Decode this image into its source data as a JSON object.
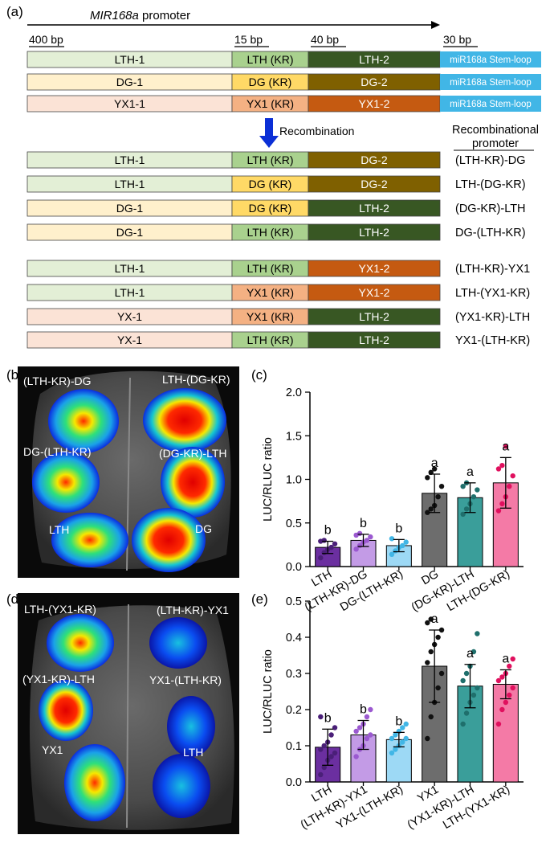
{
  "panels": {
    "a": "(a)",
    "b": "(b)",
    "c": "(c)",
    "d": "(d)",
    "e": "(e)"
  },
  "promoter_label": "MIR168a promoter",
  "promoter_label_italic": "MIR168a",
  "promoter_label_rest": " promoter",
  "scale_labels": [
    "400 bp",
    "15 bp",
    "40 bp",
    "30 bp"
  ],
  "stem_loop_label": "miR168a Stem-loop",
  "colors": {
    "LTH-1": "#e3efd6",
    "LTH(KR)": "#a9d18e",
    "LTH-2": "#385723",
    "DG-1": "#fff0cc",
    "DG(KR)": "#ffd966",
    "DG-2": "#7f6000",
    "YX1-1": "#fbe3d6",
    "YX1(KR)": "#f4b183",
    "YX1-2": "#c55a11",
    "stem": "#41b6e6",
    "arrow": "#0b2fd6"
  },
  "original_rows": [
    {
      "seg1": "LTH-1",
      "seg2": "LTH (KR)",
      "seg3": "LTH-2",
      "c1": "#e3efd6",
      "c2": "#a9d18e",
      "c3": "#385723",
      "t3": "#fff"
    },
    {
      "seg1": "DG-1",
      "seg2": "DG (KR)",
      "seg3": "DG-2",
      "c1": "#fff0cc",
      "c2": "#ffd966",
      "c3": "#7f6000",
      "t3": "#fff"
    },
    {
      "seg1": "YX1-1",
      "seg2": "YX1 (KR)",
      "seg3": "YX1-2",
      "c1": "#fbe3d6",
      "c2": "#f4b183",
      "c3": "#c55a11",
      "t3": "#fff"
    }
  ],
  "recombination_label": "Recombination",
  "recombinational_header": [
    "Recombinational",
    "promoter"
  ],
  "recomb_rows": [
    {
      "seg1": "LTH-1",
      "seg2": "LTH (KR)",
      "seg3": "DG-2",
      "c1": "#e3efd6",
      "c2": "#a9d18e",
      "c3": "#7f6000",
      "name": "(LTH-KR)-DG"
    },
    {
      "seg1": "LTH-1",
      "seg2": "DG (KR)",
      "seg3": "DG-2",
      "c1": "#e3efd6",
      "c2": "#ffd966",
      "c3": "#7f6000",
      "name": "LTH-(DG-KR)"
    },
    {
      "seg1": "DG-1",
      "seg2": "DG (KR)",
      "seg3": "LTH-2",
      "c1": "#fff0cc",
      "c2": "#ffd966",
      "c3": "#385723",
      "name": "(DG-KR)-LTH"
    },
    {
      "seg1": "DG-1",
      "seg2": "LTH (KR)",
      "seg3": "LTH-2",
      "c1": "#fff0cc",
      "c2": "#a9d18e",
      "c3": "#385723",
      "name": "DG-(LTH-KR)"
    },
    {
      "seg1": "LTH-1",
      "seg2": "LTH (KR)",
      "seg3": "YX1-2",
      "c1": "#e3efd6",
      "c2": "#a9d18e",
      "c3": "#c55a11",
      "name": "(LTH-KR)-YX1"
    },
    {
      "seg1": "LTH-1",
      "seg2": "YX1 (KR)",
      "seg3": "YX1-2",
      "c1": "#e3efd6",
      "c2": "#f4b183",
      "c3": "#c55a11",
      "name": "LTH-(YX1-KR)"
    },
    {
      "seg1": "YX-1",
      "seg2": "YX1 (KR)",
      "seg3": "LTH-2",
      "c1": "#fbe3d6",
      "c2": "#f4b183",
      "c3": "#385723",
      "name": "(YX1-KR)-LTH"
    },
    {
      "seg1": "YX-1",
      "seg2": "LTH (KR)",
      "seg3": "LTH-2",
      "c1": "#fbe3d6",
      "c2": "#a9d18e",
      "c3": "#385723",
      "name": "YX1-(LTH-KR)"
    }
  ],
  "leaf_b_labels": [
    "(LTH-KR)-DG",
    "LTH-(DG-KR)",
    "DG-(LTH-KR)",
    "(DG-KR)-LTH",
    "LTH",
    "DG"
  ],
  "leaf_d_labels": [
    "LTH-(YX1-KR)",
    "(LTH-KR)-YX1",
    "(YX1-KR)-LTH",
    "YX1-(LTH-KR)",
    "YX1",
    "LTH"
  ],
  "chart_data": [
    {
      "type": "bar",
      "panel": "c",
      "ylabel": "LUC/RLUC ratio",
      "ylim": [
        0,
        2.0
      ],
      "yticks": [
        "0.0",
        "0.5",
        "1.0",
        "1.5",
        "2.0"
      ],
      "categories": [
        "LTH",
        "(LTH-KR)-DG",
        "DG-(LTH-KR)",
        "DG",
        "(DG-KR)-LTH",
        "LTH-(DG-KR)"
      ],
      "values": [
        0.22,
        0.3,
        0.24,
        0.84,
        0.79,
        0.96
      ],
      "errors": [
        0.07,
        0.07,
        0.07,
        0.22,
        0.17,
        0.29
      ],
      "significance": [
        "b",
        "b",
        "b",
        "a",
        "a",
        "a"
      ],
      "bar_colors": [
        "#6b2fa0",
        "#c39be6",
        "#9dd9f5",
        "#6d6d6d",
        "#3a9e9a",
        "#f47aa6"
      ],
      "point_colors": [
        "#4a1f78",
        "#9b59d0",
        "#41b6e6",
        "#111111",
        "#1f6f6c",
        "#e0105e"
      ],
      "points": [
        [
          0.1,
          0.16,
          0.2,
          0.22,
          0.26,
          0.29,
          0.3
        ],
        [
          0.2,
          0.24,
          0.28,
          0.3,
          0.34,
          0.36,
          0.38
        ],
        [
          0.14,
          0.18,
          0.22,
          0.24,
          0.28,
          0.32
        ],
        [
          0.62,
          0.66,
          0.7,
          0.8,
          0.92,
          1.02,
          1.08,
          1.12
        ],
        [
          0.6,
          0.66,
          0.72,
          0.8,
          0.88,
          0.92,
          0.96
        ],
        [
          0.64,
          0.72,
          0.8,
          0.92,
          1.04,
          1.12,
          1.16,
          1.38
        ]
      ]
    },
    {
      "type": "bar",
      "panel": "e",
      "ylabel": "LUC/RLUC ratio",
      "ylim": [
        0,
        0.5
      ],
      "yticks": [
        "0.0",
        "0.1",
        "0.2",
        "0.3",
        "0.4",
        "0.5"
      ],
      "categories": [
        "LTH",
        "(LTH-KR)-YX1",
        "YX1-(LTH-KR)",
        "YX1",
        "(YX1-KR)-LTH",
        "LTH-(YX1-KR)"
      ],
      "values": [
        0.096,
        0.13,
        0.117,
        0.32,
        0.265,
        0.27
      ],
      "errors": [
        0.05,
        0.04,
        0.02,
        0.1,
        0.06,
        0.04
      ],
      "significance": [
        "b",
        "b",
        "b",
        "a",
        "a",
        "a"
      ],
      "bar_colors": [
        "#6b2fa0",
        "#c39be6",
        "#9dd9f5",
        "#6d6d6d",
        "#3a9e9a",
        "#f47aa6"
      ],
      "point_colors": [
        "#4a1f78",
        "#9b59d0",
        "#41b6e6",
        "#111111",
        "#1f6f6c",
        "#e0105e"
      ],
      "points": [
        [
          0.02,
          0.04,
          0.06,
          0.07,
          0.08,
          0.09,
          0.1,
          0.11,
          0.13,
          0.15,
          0.18
        ],
        [
          0.07,
          0.09,
          0.1,
          0.12,
          0.13,
          0.14,
          0.15,
          0.16,
          0.18,
          0.2
        ],
        [
          0.08,
          0.09,
          0.1,
          0.11,
          0.12,
          0.12,
          0.13,
          0.14,
          0.15,
          0.16
        ],
        [
          0.12,
          0.18,
          0.22,
          0.26,
          0.3,
          0.33,
          0.36,
          0.38,
          0.4,
          0.42,
          0.44,
          0.45
        ],
        [
          0.16,
          0.19,
          0.22,
          0.24,
          0.26,
          0.28,
          0.3,
          0.32,
          0.36,
          0.41
        ],
        [
          0.16,
          0.2,
          0.22,
          0.24,
          0.26,
          0.28,
          0.29,
          0.3,
          0.32,
          0.34
        ]
      ]
    }
  ]
}
